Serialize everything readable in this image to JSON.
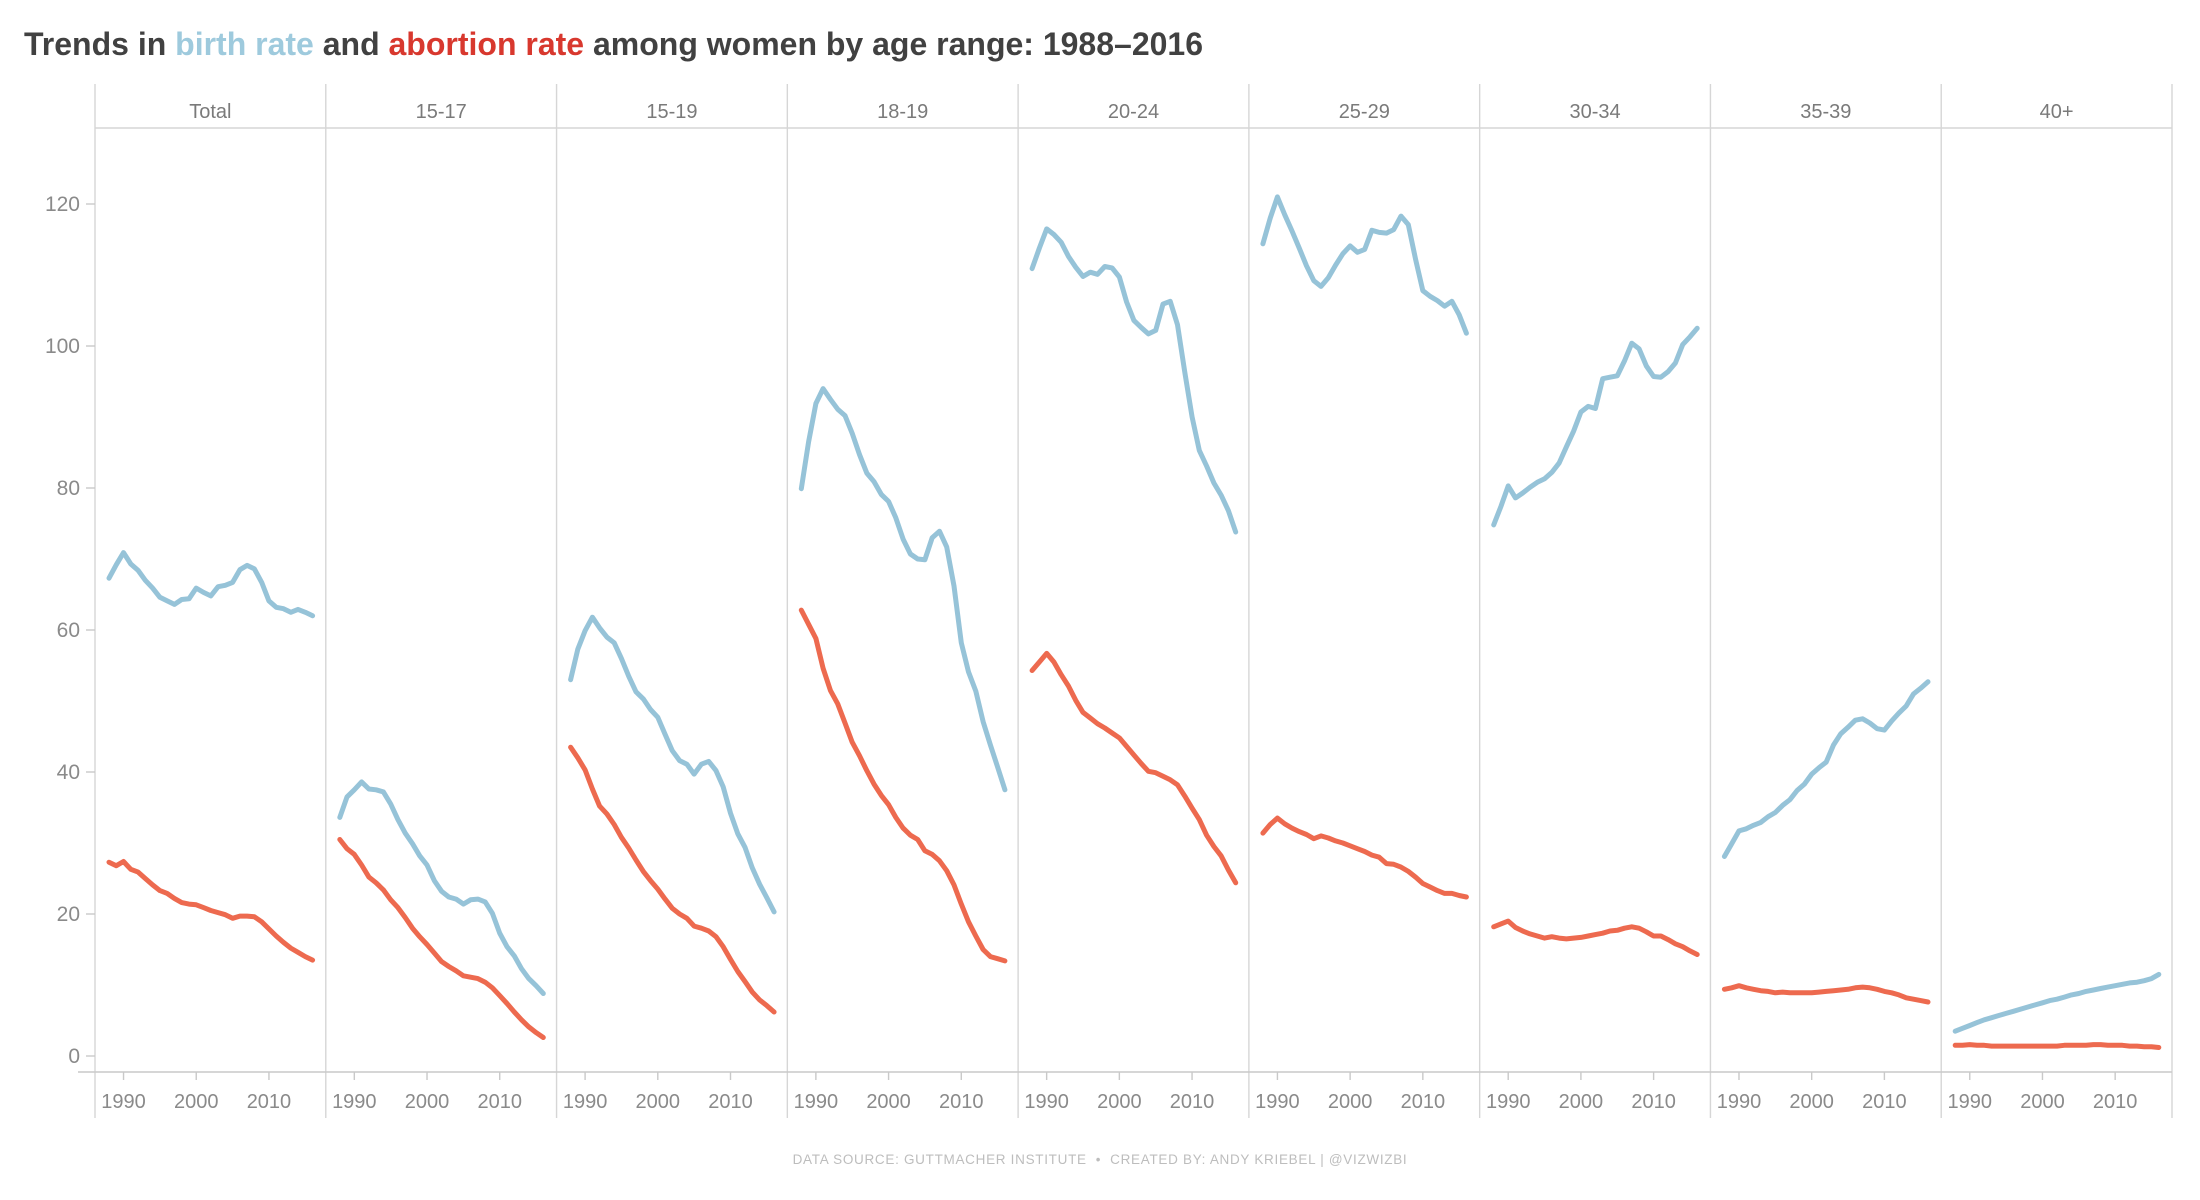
{
  "title": {
    "part1": "Trends in ",
    "birth_label": "birth rate",
    "part2": " and ",
    "abortion_label": "abortion rate",
    "part3": " among women by age range: 1988–2016"
  },
  "footer": {
    "source": "DATA SOURCE: GUTTMACHER INSTITUTE",
    "separator": "•",
    "credit": "CREATED BY: ANDY KRIEBEL | @VIZWIZBI"
  },
  "colors": {
    "birth_line": "#96c3d8",
    "abortion_line": "#ed6a4f",
    "title_text": "#414141",
    "header_text": "#7a7a7a",
    "axis_text": "#8a8a8a",
    "grid_line": "#d6d6d6",
    "axis_line": "#c9c9c9",
    "footer_text": "#bdbdbd"
  },
  "chart_data": {
    "type": "line",
    "title": "Trends in birth rate and abortion rate among women by age range: 1988–2016",
    "xlabel": "",
    "ylabel": "",
    "grid": "off",
    "legend": "in-title",
    "ylim": [
      0,
      130
    ],
    "y_ticks": [
      0,
      20,
      40,
      60,
      80,
      100,
      120
    ],
    "x_ticks": [
      1990,
      2000,
      2010
    ],
    "x_tick_labels": [
      "1990",
      "2000",
      "2010"
    ],
    "years": [
      1988,
      1989,
      1990,
      1991,
      1992,
      1993,
      1994,
      1995,
      1996,
      1997,
      1998,
      1999,
      2000,
      2001,
      2002,
      2003,
      2004,
      2005,
      2006,
      2007,
      2008,
      2009,
      2010,
      2011,
      2012,
      2013,
      2014,
      2015,
      2016
    ],
    "series_names": [
      "birth rate",
      "abortion rate"
    ],
    "panels": [
      {
        "label": "Total",
        "series": [
          {
            "name": "birth rate",
            "color": "birth_line",
            "values": [
              67.3,
              69.2,
              70.9,
              69.3,
              68.4,
              67.0,
              65.9,
              64.6,
              64.1,
              63.6,
              64.3,
              64.4,
              65.9,
              65.3,
              64.8,
              66.1,
              66.3,
              66.7,
              68.5,
              69.1,
              68.6,
              66.7,
              64.1,
              63.2,
              63.0,
              62.5,
              62.9,
              62.5,
              62.0
            ]
          },
          {
            "name": "abortion rate",
            "color": "abortion_line",
            "values": [
              27.3,
              26.8,
              27.4,
              26.3,
              25.9,
              25.0,
              24.1,
              23.3,
              22.9,
              22.2,
              21.6,
              21.4,
              21.3,
              20.9,
              20.5,
              20.2,
              19.9,
              19.4,
              19.7,
              19.7,
              19.6,
              18.9,
              17.9,
              16.9,
              16.0,
              15.2,
              14.6,
              14.0,
              13.5
            ]
          }
        ]
      },
      {
        "label": "15-17",
        "series": [
          {
            "name": "birth rate",
            "color": "birth_line",
            "values": [
              33.6,
              36.5,
              37.5,
              38.6,
              37.6,
              37.5,
              37.2,
              35.5,
              33.3,
              31.4,
              29.9,
              28.2,
              26.9,
              24.7,
              23.2,
              22.4,
              22.1,
              21.4,
              22.0,
              22.1,
              21.7,
              20.1,
              17.3,
              15.4,
              14.1,
              12.3,
              10.9,
              9.9,
              8.8
            ]
          },
          {
            "name": "abortion rate",
            "color": "abortion_line",
            "values": [
              30.5,
              29.2,
              28.4,
              26.9,
              25.2,
              24.4,
              23.4,
              22.0,
              20.9,
              19.5,
              18.0,
              16.8,
              15.7,
              14.5,
              13.3,
              12.6,
              12.0,
              11.3,
              11.1,
              10.9,
              10.4,
              9.6,
              8.5,
              7.4,
              6.2,
              5.1,
              4.1,
              3.3,
              2.6
            ]
          }
        ]
      },
      {
        "label": "15-19",
        "series": [
          {
            "name": "birth rate",
            "color": "birth_line",
            "values": [
              53.0,
              57.3,
              59.9,
              61.8,
              60.3,
              59.0,
              58.2,
              56.0,
              53.5,
              51.3,
              50.3,
              48.8,
              47.7,
              45.3,
              43.0,
              41.6,
              41.1,
              39.7,
              41.1,
              41.5,
              40.2,
              37.9,
              34.2,
              31.3,
              29.4,
              26.5,
              24.2,
              22.3,
              20.3
            ]
          },
          {
            "name": "abortion rate",
            "color": "abortion_line",
            "values": [
              43.5,
              42.0,
              40.3,
              37.6,
              35.2,
              34.1,
              32.6,
              30.8,
              29.3,
              27.6,
              26.0,
              24.7,
              23.5,
              22.1,
              20.8,
              20.0,
              19.4,
              18.3,
              18.0,
              17.6,
              16.8,
              15.4,
              13.6,
              11.9,
              10.5,
              9.0,
              7.9,
              7.1,
              6.2
            ]
          }
        ]
      },
      {
        "label": "18-19",
        "series": [
          {
            "name": "birth rate",
            "color": "birth_line",
            "values": [
              79.9,
              86.5,
              91.9,
              94.0,
              92.5,
              91.1,
              90.2,
              87.7,
              84.7,
              82.1,
              80.9,
              79.1,
              78.1,
              75.8,
              72.8,
              70.7,
              70.0,
              69.9,
              73.0,
              73.9,
              71.7,
              66.2,
              58.2,
              54.1,
              51.4,
              47.1,
              43.8,
              40.7,
              37.5
            ]
          },
          {
            "name": "abortion rate",
            "color": "abortion_line",
            "values": [
              62.8,
              60.8,
              58.8,
              54.6,
              51.5,
              49.6,
              46.9,
              44.2,
              42.3,
              40.2,
              38.3,
              36.7,
              35.4,
              33.6,
              32.1,
              31.1,
              30.5,
              28.9,
              28.4,
              27.5,
              26.1,
              24.1,
              21.4,
              18.9,
              16.9,
              15.0,
              14.0,
              13.7,
              13.4
            ]
          }
        ]
      },
      {
        "label": "20-24",
        "series": [
          {
            "name": "birth rate",
            "color": "birth_line",
            "values": [
              110.9,
              113.8,
              116.5,
              115.7,
              114.6,
              112.6,
              111.1,
              109.8,
              110.4,
              110.1,
              111.2,
              111.0,
              109.7,
              106.2,
              103.6,
              102.6,
              101.7,
              102.2,
              105.9,
              106.3,
              103.0,
              96.3,
              90.0,
              85.3,
              83.1,
              80.7,
              79.0,
              76.8,
              73.8
            ]
          },
          {
            "name": "abortion rate",
            "color": "abortion_line",
            "values": [
              54.3,
              55.5,
              56.7,
              55.5,
              53.7,
              52.1,
              50.1,
              48.4,
              47.6,
              46.8,
              46.2,
              45.5,
              44.8,
              43.6,
              42.4,
              41.2,
              40.1,
              39.9,
              39.4,
              38.9,
              38.2,
              36.6,
              34.9,
              33.3,
              31.1,
              29.5,
              28.2,
              26.2,
              24.4
            ]
          }
        ]
      },
      {
        "label": "25-29",
        "series": [
          {
            "name": "birth rate",
            "color": "birth_line",
            "values": [
              114.4,
              118.0,
              121.0,
              118.5,
              116.2,
              113.8,
              111.3,
              109.2,
              108.4,
              109.6,
              111.4,
              113.0,
              114.1,
              113.2,
              113.6,
              116.3,
              116.0,
              115.9,
              116.4,
              118.3,
              117.1,
              112.2,
              107.8,
              107.0,
              106.4,
              105.6,
              106.3,
              104.4,
              101.8
            ]
          },
          {
            "name": "abortion rate",
            "color": "abortion_line",
            "values": [
              31.4,
              32.6,
              33.5,
              32.7,
              32.1,
              31.6,
              31.2,
              30.6,
              31.0,
              30.7,
              30.3,
              30.0,
              29.6,
              29.2,
              28.8,
              28.3,
              28.0,
              27.1,
              27.0,
              26.6,
              26.0,
              25.2,
              24.3,
              23.8,
              23.3,
              22.9,
              22.9,
              22.6,
              22.4
            ]
          }
        ]
      },
      {
        "label": "30-34",
        "series": [
          {
            "name": "birth rate",
            "color": "birth_line",
            "values": [
              74.8,
              77.4,
              80.3,
              78.6,
              79.3,
              80.1,
              80.8,
              81.3,
              82.2,
              83.5,
              85.8,
              88.0,
              90.7,
              91.5,
              91.2,
              95.4,
              95.6,
              95.8,
              97.9,
              100.4,
              99.6,
              97.2,
              95.7,
              95.6,
              96.4,
              97.6,
              100.2,
              101.3,
              102.5
            ]
          },
          {
            "name": "abortion rate",
            "color": "abortion_line",
            "values": [
              18.2,
              18.6,
              19.0,
              18.1,
              17.6,
              17.2,
              16.9,
              16.6,
              16.8,
              16.6,
              16.5,
              16.6,
              16.7,
              16.9,
              17.1,
              17.3,
              17.6,
              17.7,
              18.0,
              18.2,
              18.0,
              17.5,
              16.9,
              16.9,
              16.4,
              15.8,
              15.4,
              14.8,
              14.3
            ]
          }
        ]
      },
      {
        "label": "35-39",
        "series": [
          {
            "name": "birth rate",
            "color": "birth_line",
            "values": [
              28.1,
              29.9,
              31.7,
              32.0,
              32.5,
              32.9,
              33.7,
              34.3,
              35.3,
              36.1,
              37.4,
              38.3,
              39.7,
              40.6,
              41.4,
              43.8,
              45.4,
              46.3,
              47.3,
              47.5,
              46.9,
              46.1,
              45.9,
              47.2,
              48.3,
              49.3,
              51.0,
              51.8,
              52.7
            ]
          },
          {
            "name": "abortion rate",
            "color": "abortion_line",
            "values": [
              9.4,
              9.6,
              9.9,
              9.6,
              9.4,
              9.2,
              9.1,
              8.9,
              9.0,
              8.9,
              8.9,
              8.9,
              8.9,
              9.0,
              9.1,
              9.2,
              9.3,
              9.4,
              9.6,
              9.7,
              9.6,
              9.4,
              9.1,
              8.9,
              8.6,
              8.2,
              8.0,
              7.8,
              7.6
            ]
          }
        ]
      },
      {
        "label": "40+",
        "series": [
          {
            "name": "birth rate",
            "color": "birth_line",
            "values": [
              3.5,
              3.9,
              4.3,
              4.7,
              5.1,
              5.4,
              5.7,
              6.0,
              6.3,
              6.6,
              6.9,
              7.2,
              7.5,
              7.8,
              8.0,
              8.3,
              8.6,
              8.8,
              9.1,
              9.3,
              9.5,
              9.7,
              9.9,
              10.1,
              10.3,
              10.4,
              10.6,
              10.9,
              11.5
            ]
          },
          {
            "name": "abortion rate",
            "color": "abortion_line",
            "values": [
              1.5,
              1.5,
              1.6,
              1.5,
              1.5,
              1.4,
              1.4,
              1.4,
              1.4,
              1.4,
              1.4,
              1.4,
              1.4,
              1.4,
              1.4,
              1.5,
              1.5,
              1.5,
              1.5,
              1.6,
              1.6,
              1.5,
              1.5,
              1.5,
              1.4,
              1.4,
              1.3,
              1.3,
              1.2
            ]
          }
        ]
      }
    ]
  }
}
